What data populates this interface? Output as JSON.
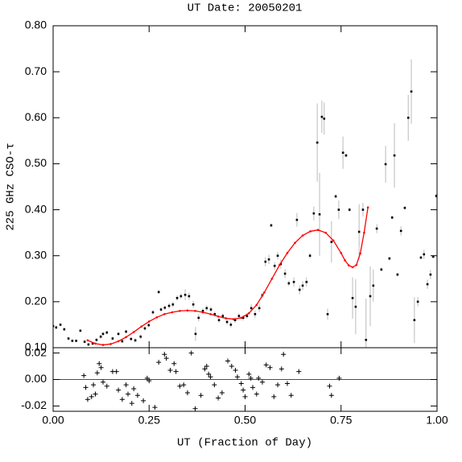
{
  "chart_data": [
    {
      "type": "scatter",
      "title": "UT Date: 20050201",
      "y_label": "225 GHz CSO-τ",
      "xlim": [
        0,
        1
      ],
      "xticks": [
        0,
        0.25,
        0.5,
        0.75,
        1
      ],
      "ylim": [
        0.1,
        0.8
      ],
      "yticks": [
        {
          "value": 0.1,
          "label": "0.10"
        },
        {
          "value": 0.2,
          "label": "0.20"
        },
        {
          "value": 0.3,
          "label": "0.30"
        },
        {
          "value": 0.4,
          "label": "0.40"
        },
        {
          "value": 0.5,
          "label": "0.50"
        },
        {
          "value": 0.6,
          "label": "0.60"
        },
        {
          "value": 0.7,
          "label": "0.70"
        },
        {
          "value": 0.8,
          "label": "0.80"
        }
      ],
      "series": [
        {
          "color": "#000000",
          "error_color": "#bbbbbb",
          "x": [
            0.0,
            0.008,
            0.019,
            0.029,
            0.04,
            0.05,
            0.06,
            0.071,
            0.082,
            0.092,
            0.103,
            0.113,
            0.124,
            0.13,
            0.14,
            0.155,
            0.17,
            0.18,
            0.19,
            0.203,
            0.214,
            0.228,
            0.239,
            0.249,
            0.26,
            0.275,
            0.281,
            0.291,
            0.302,
            0.312,
            0.323,
            0.333,
            0.344,
            0.354,
            0.365,
            0.371,
            0.379,
            0.39,
            0.4,
            0.411,
            0.421,
            0.432,
            0.442,
            0.453,
            0.463,
            0.474,
            0.484,
            0.495,
            0.505,
            0.516,
            0.526,
            0.537,
            0.545,
            0.553,
            0.562,
            0.568,
            0.577,
            0.585,
            0.593,
            0.604,
            0.614,
            0.627,
            0.635,
            0.642,
            0.65,
            0.66,
            0.669,
            0.679,
            0.688,
            0.694,
            0.7,
            0.706,
            0.715,
            0.725,
            0.736,
            0.744,
            0.755,
            0.763,
            0.772,
            0.78,
            0.788,
            0.797,
            0.807,
            0.815,
            0.826,
            0.834,
            0.843,
            0.855,
            0.866,
            0.876,
            0.883,
            0.889,
            0.897,
            0.906,
            0.916,
            0.925,
            0.933,
            0.941,
            0.95,
            0.958,
            0.966,
            0.975,
            0.983,
            0.99,
            0.998
          ],
          "values": [
            0.147,
            0.144,
            0.15,
            0.14,
            0.12,
            0.115,
            0.115,
            0.137,
            0.113,
            0.107,
            0.109,
            0.117,
            0.124,
            0.13,
            0.133,
            0.12,
            0.13,
            0.114,
            0.135,
            0.119,
            0.116,
            0.124,
            0.142,
            0.149,
            0.177,
            0.221,
            0.183,
            0.187,
            0.191,
            0.194,
            0.208,
            0.212,
            0.215,
            0.212,
            0.194,
            0.13,
            0.165,
            0.18,
            0.186,
            0.183,
            0.173,
            0.16,
            0.169,
            0.156,
            0.15,
            0.16,
            0.169,
            0.165,
            0.169,
            0.186,
            0.173,
            0.186,
            0.214,
            0.287,
            0.292,
            0.366,
            0.278,
            0.3,
            0.282,
            0.261,
            0.24,
            0.243,
            0.378,
            0.226,
            0.235,
            0.243,
            0.3,
            0.392,
            0.546,
            0.39,
            0.602,
            0.598,
            0.173,
            0.33,
            0.429,
            0.4,
            0.524,
            0.518,
            0.4,
            0.208,
            0.189,
            0.352,
            0.4,
            0.117,
            0.212,
            0.235,
            0.359,
            0.27,
            0.499,
            0.294,
            0.383,
            0.518,
            0.259,
            0.354,
            0.404,
            0.6,
            0.657,
            0.16,
            0.2,
            0.296,
            0.303,
            0.238,
            0.259,
            0.298,
            0.43
          ],
          "errors": [
            0.004,
            0.004,
            0.003,
            0.004,
            0.003,
            0.003,
            0.003,
            0.003,
            0.003,
            0.003,
            0.003,
            0.004,
            0.004,
            0.004,
            0.004,
            0.004,
            0.004,
            0.004,
            0.004,
            0.004,
            0.004,
            0.005,
            0.005,
            0.005,
            0.005,
            0.004,
            0.005,
            0.005,
            0.006,
            0.006,
            0.006,
            0.006,
            0.012,
            0.008,
            0.008,
            0.015,
            0.008,
            0.006,
            0.006,
            0.006,
            0.006,
            0.006,
            0.006,
            0.006,
            0.006,
            0.006,
            0.006,
            0.006,
            0.006,
            0.008,
            0.008,
            0.008,
            0.006,
            0.01,
            0.01,
            0.004,
            0.008,
            0.008,
            0.01,
            0.01,
            0.006,
            0.01,
            0.015,
            0.01,
            0.01,
            0.01,
            0.006,
            0.015,
            0.085,
            0.09,
            0.035,
            0.035,
            0.012,
            0.045,
            0.004,
            0.02,
            0.035,
            0.004,
            0.004,
            0.045,
            0.06,
            0.06,
            0.015,
            0.09,
            0.065,
            0.035,
            0.01,
            0.004,
            0.04,
            0.004,
            0.004,
            0.07,
            0.004,
            0.01,
            0.004,
            0.05,
            0.07,
            0.05,
            0.01,
            0.004,
            0.01,
            0.01,
            0.01,
            0.004,
            0.004
          ]
        },
        {
          "type": "line",
          "color": "#ff0000",
          "x": [
            0.09,
            0.11,
            0.13,
            0.15,
            0.17,
            0.19,
            0.21,
            0.23,
            0.25,
            0.27,
            0.29,
            0.31,
            0.33,
            0.35,
            0.37,
            0.39,
            0.41,
            0.43,
            0.45,
            0.47,
            0.49,
            0.51,
            0.53,
            0.55,
            0.57,
            0.59,
            0.61,
            0.63,
            0.65,
            0.67,
            0.69,
            0.71,
            0.73,
            0.75,
            0.76,
            0.77,
            0.78,
            0.79,
            0.8,
            0.81,
            0.82
          ],
          "values": [
            0.116,
            0.109,
            0.106,
            0.108,
            0.114,
            0.123,
            0.134,
            0.146,
            0.157,
            0.166,
            0.173,
            0.177,
            0.18,
            0.181,
            0.18,
            0.177,
            0.173,
            0.168,
            0.164,
            0.162,
            0.165,
            0.175,
            0.193,
            0.22,
            0.25,
            0.28,
            0.306,
            0.328,
            0.344,
            0.353,
            0.356,
            0.35,
            0.333,
            0.306,
            0.29,
            0.279,
            0.275,
            0.28,
            0.305,
            0.35,
            0.405
          ]
        }
      ]
    },
    {
      "type": "scatter",
      "x_label": "UT (Fraction of Day)",
      "xlim": [
        0,
        1
      ],
      "xticks": [
        {
          "value": 0,
          "label": "0.00"
        },
        {
          "value": 0.25,
          "label": "0.25"
        },
        {
          "value": 0.5,
          "label": "0.50"
        },
        {
          "value": 0.75,
          "label": "0.75"
        },
        {
          "value": 1,
          "label": "1.00"
        }
      ],
      "ylim": [
        -0.024,
        0.024
      ],
      "yticks": [
        -0.02,
        {
          "value": 0,
          "label": "0.00"
        },
        0.02
      ],
      "hline": 0,
      "hline_color": "#ff0000",
      "series": [
        {
          "color": "#000000",
          "x": [
            0.08,
            0.085,
            0.09,
            0.1,
            0.105,
            0.11,
            0.115,
            0.12,
            0.125,
            0.13,
            0.14,
            0.155,
            0.165,
            0.17,
            0.18,
            0.19,
            0.195,
            0.205,
            0.21,
            0.22,
            0.235,
            0.245,
            0.25,
            0.265,
            0.275,
            0.29,
            0.295,
            0.305,
            0.315,
            0.32,
            0.33,
            0.34,
            0.35,
            0.36,
            0.37,
            0.385,
            0.395,
            0.4,
            0.405,
            0.41,
            0.42,
            0.43,
            0.44,
            0.455,
            0.465,
            0.475,
            0.48,
            0.49,
            0.495,
            0.5,
            0.51,
            0.515,
            0.52,
            0.53,
            0.535,
            0.545,
            0.555,
            0.565,
            0.575,
            0.585,
            0.595,
            0.6,
            0.61,
            0.62,
            0.64,
            0.72,
            0.725,
            0.745
          ],
          "values": [
            0.003,
            -0.006,
            -0.015,
            -0.013,
            -0.004,
            -0.011,
            0.005,
            0.012,
            0.009,
            -0.002,
            -0.005,
            0.006,
            0.006,
            -0.008,
            -0.015,
            -0.004,
            -0.011,
            -0.018,
            -0.007,
            -0.012,
            -0.016,
            0.001,
            -0.001,
            -0.021,
            0.013,
            0.019,
            0.016,
            0.007,
            0.012,
            0.006,
            -0.005,
            -0.004,
            -0.01,
            0.02,
            -0.022,
            -0.012,
            0.008,
            0.01,
            0.004,
            0.002,
            -0.004,
            -0.014,
            -0.01,
            0.014,
            0.01,
            0.007,
            0.002,
            -0.003,
            -0.008,
            -0.013,
            0.004,
            0.001,
            -0.006,
            -0.011,
            0.001,
            -0.002,
            0.011,
            0.009,
            -0.013,
            -0.004,
            0.008,
            0.019,
            -0.003,
            -0.012,
            0.006,
            -0.005,
            -0.012,
            0.001
          ]
        }
      ]
    }
  ]
}
